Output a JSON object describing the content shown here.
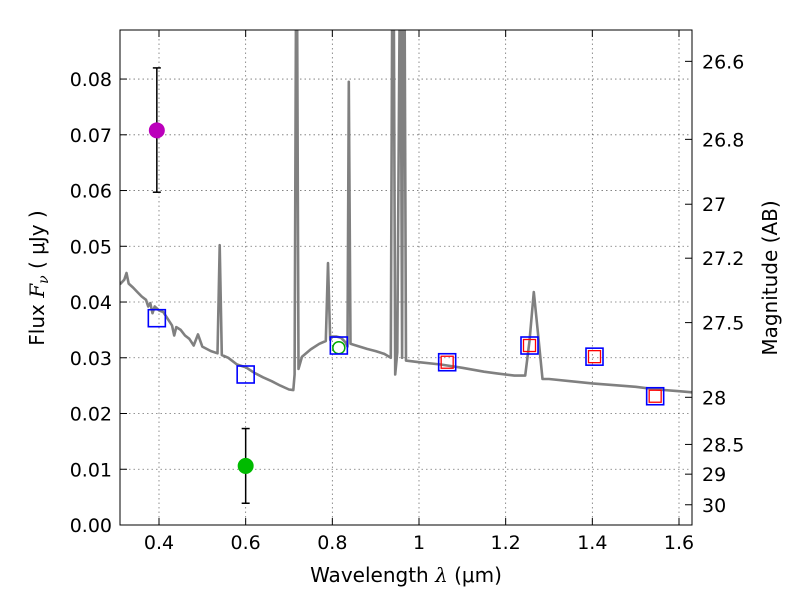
{
  "chart_data": {
    "type": "scatter",
    "xlabel_text": "Wavelength  ",
    "xlabel_symbol": "λ",
    "xlabel_unit": " (μm)",
    "ylabel_text": "Flux  ",
    "ylabel_symbol": "F",
    "ylabel_sub": "ν",
    "ylabel_unit": "  ( μJy )",
    "y2label": "Magnitude (AB)",
    "xlim": [
      0.31,
      1.63
    ],
    "ylim": [
      0.0,
      0.0888
    ],
    "x_ticks": [
      0.4,
      0.6,
      0.8,
      1.0,
      1.2,
      1.4,
      1.6
    ],
    "x_tick_labels": [
      "0.4",
      "0.6",
      "0.8",
      "1",
      "1.2",
      "1.4",
      "1.6"
    ],
    "y_ticks": [
      0.0,
      0.01,
      0.02,
      0.03,
      0.04,
      0.05,
      0.06,
      0.07,
      0.08
    ],
    "y_tick_labels": [
      "0.00",
      "0.01",
      "0.02",
      "0.03",
      "0.04",
      "0.05",
      "0.06",
      "0.07",
      "0.08"
    ],
    "y2_ticks": [
      26.6,
      26.8,
      27,
      27.2,
      27.5,
      28,
      28.5,
      29,
      30
    ],
    "y2_tick_labels": [
      "26.6",
      "26.8",
      "27",
      "27.2",
      "27.5",
      "28",
      "28.5",
      "29",
      "30"
    ],
    "grid": true,
    "colors": {
      "spectrum": "#808080",
      "model": "#0000ff",
      "observed": "#ff0000",
      "magenta": "#bb00bb",
      "green": "#00bb00",
      "green_open": "#00aa00"
    },
    "spectrum": [
      [
        0.31,
        0.0432
      ],
      [
        0.32,
        0.044
      ],
      [
        0.325,
        0.0452
      ],
      [
        0.33,
        0.0433
      ],
      [
        0.34,
        0.0426
      ],
      [
        0.35,
        0.0418
      ],
      [
        0.36,
        0.041
      ],
      [
        0.37,
        0.0404
      ],
      [
        0.375,
        0.0392
      ],
      [
        0.38,
        0.0398
      ],
      [
        0.385,
        0.038
      ],
      [
        0.39,
        0.0392
      ],
      [
        0.4,
        0.0385
      ],
      [
        0.41,
        0.0382
      ],
      [
        0.42,
        0.037
      ],
      [
        0.43,
        0.0358
      ],
      [
        0.435,
        0.034
      ],
      [
        0.44,
        0.0355
      ],
      [
        0.45,
        0.035
      ],
      [
        0.46,
        0.034
      ],
      [
        0.47,
        0.0334
      ],
      [
        0.48,
        0.0322
      ],
      [
        0.49,
        0.0342
      ],
      [
        0.5,
        0.032
      ],
      [
        0.52,
        0.0312
      ],
      [
        0.535,
        0.0308
      ],
      [
        0.54,
        0.0502
      ],
      [
        0.545,
        0.0305
      ],
      [
        0.56,
        0.03
      ],
      [
        0.58,
        0.0288
      ],
      [
        0.6,
        0.0283
      ],
      [
        0.62,
        0.0273
      ],
      [
        0.64,
        0.0265
      ],
      [
        0.66,
        0.0258
      ],
      [
        0.68,
        0.025
      ],
      [
        0.7,
        0.0243
      ],
      [
        0.71,
        0.0242
      ],
      [
        0.713,
        0.027
      ],
      [
        0.716,
        0.089
      ],
      [
        0.719,
        0.089
      ],
      [
        0.722,
        0.028
      ],
      [
        0.73,
        0.0302
      ],
      [
        0.75,
        0.0315
      ],
      [
        0.77,
        0.0325
      ],
      [
        0.785,
        0.033
      ],
      [
        0.79,
        0.047
      ],
      [
        0.795,
        0.0332
      ],
      [
        0.8,
        0.0338
      ],
      [
        0.81,
        0.0338
      ],
      [
        0.82,
        0.0336
      ],
      [
        0.83,
        0.0328
      ],
      [
        0.835,
        0.032
      ],
      [
        0.838,
        0.0795
      ],
      [
        0.842,
        0.0325
      ],
      [
        0.85,
        0.0323
      ],
      [
        0.88,
        0.0316
      ],
      [
        0.9,
        0.0312
      ],
      [
        0.92,
        0.0307
      ],
      [
        0.935,
        0.03
      ],
      [
        0.938,
        0.089
      ],
      [
        0.942,
        0.089
      ],
      [
        0.945,
        0.027
      ],
      [
        0.95,
        0.031
      ],
      [
        0.955,
        0.089
      ],
      [
        0.958,
        0.089
      ],
      [
        0.961,
        0.03
      ],
      [
        0.963,
        0.089
      ],
      [
        0.967,
        0.089
      ],
      [
        0.97,
        0.0295
      ],
      [
        1.0,
        0.0292
      ],
      [
        1.05,
        0.0288
      ],
      [
        1.1,
        0.0282
      ],
      [
        1.15,
        0.0275
      ],
      [
        1.18,
        0.0272
      ],
      [
        1.22,
        0.0268
      ],
      [
        1.245,
        0.0268
      ],
      [
        1.255,
        0.033
      ],
      [
        1.265,
        0.0418
      ],
      [
        1.275,
        0.034
      ],
      [
        1.285,
        0.0262
      ],
      [
        1.3,
        0.0262
      ],
      [
        1.4,
        0.0254
      ],
      [
        1.5,
        0.0248
      ],
      [
        1.55,
        0.0243
      ],
      [
        1.6,
        0.024
      ],
      [
        1.63,
        0.0238
      ]
    ],
    "model_points": [
      {
        "x": 0.395,
        "y": 0.0371
      },
      {
        "x": 0.6,
        "y": 0.027
      },
      {
        "x": 0.815,
        "y": 0.0322
      },
      {
        "x": 1.065,
        "y": 0.0292
      },
      {
        "x": 1.255,
        "y": 0.0322
      },
      {
        "x": 1.405,
        "y": 0.0302
      },
      {
        "x": 1.545,
        "y": 0.0231
      }
    ],
    "observed_points": [
      {
        "x": 1.065,
        "y": 0.0292
      },
      {
        "x": 1.255,
        "y": 0.0322
      },
      {
        "x": 1.405,
        "y": 0.0302
      },
      {
        "x": 1.545,
        "y": 0.0231
      }
    ],
    "green_open_point": {
      "x": 0.815,
      "y": 0.0318
    },
    "detections": [
      {
        "name": "magenta",
        "x": 0.395,
        "y": 0.0708,
        "ylow": 0.0597,
        "yhigh": 0.082
      },
      {
        "name": "green",
        "x": 0.6,
        "y": 0.0106,
        "ylow": 0.0039,
        "yhigh": 0.0173
      }
    ]
  }
}
